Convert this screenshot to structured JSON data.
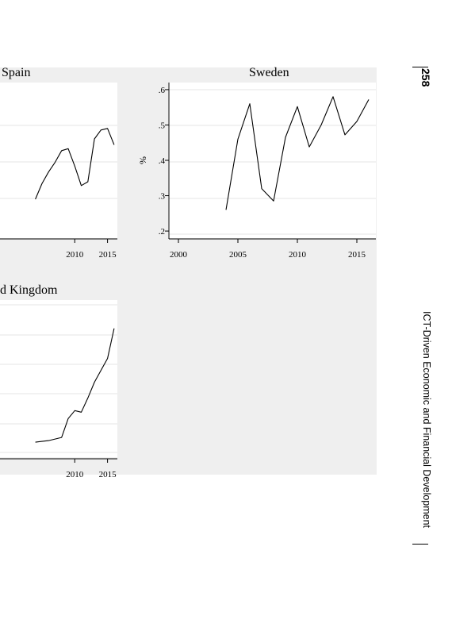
{
  "page": {
    "number": "258",
    "running_header": "ICT-Driven Economic and Financial Development"
  },
  "chart_data": [
    {
      "type": "line",
      "title": "Spain",
      "xlim": [
        1998.6,
        2016.5
      ],
      "ylim": [
        0.2,
        0.6
      ],
      "x_ticks": [
        "2010",
        "2015"
      ],
      "x": [
        2004,
        2005,
        2006,
        2007,
        2008,
        2009,
        2010,
        2011,
        2012,
        2013,
        2014,
        2015,
        2016
      ],
      "values": [
        0.3,
        0.34,
        0.37,
        0.395,
        0.425,
        0.43,
        0.385,
        0.335,
        0.345,
        0.455,
        0.478,
        0.482,
        0.44
      ],
      "grid": true
    },
    {
      "type": "line",
      "title": "Sweden",
      "xlim": [
        1999.2,
        2016.6
      ],
      "ylim": [
        0.18,
        0.62
      ],
      "x_ticks": [
        "2000",
        "2005",
        "2010",
        "2015"
      ],
      "y_ticks": [
        ".2",
        ".3",
        ".4",
        ".5",
        ".6"
      ],
      "ylabel": "%",
      "x": [
        2004,
        2005,
        2006,
        2007,
        2008,
        2009,
        2010,
        2011,
        2012,
        2013,
        2014,
        2015,
        2016
      ],
      "values": [
        0.26,
        0.46,
        0.56,
        0.32,
        0.285,
        0.465,
        0.552,
        0.438,
        0.5,
        0.58,
        0.472,
        0.51,
        0.572
      ],
      "grid": true
    },
    {
      "type": "line",
      "title": "d Kingdom",
      "xlim": [
        1998.6,
        2016.5
      ],
      "ylim": [
        0.0,
        1.0
      ],
      "x_ticks": [
        "2010",
        "2015"
      ],
      "x": [
        2004,
        2005,
        2006,
        2007,
        2008,
        2009,
        2010,
        2011,
        2012,
        2013,
        2014,
        2015,
        2016
      ],
      "values": [
        0.1,
        0.105,
        0.11,
        0.12,
        0.13,
        0.25,
        0.3,
        0.29,
        0.38,
        0.48,
        0.555,
        0.63,
        0.82
      ],
      "grid": true
    }
  ]
}
